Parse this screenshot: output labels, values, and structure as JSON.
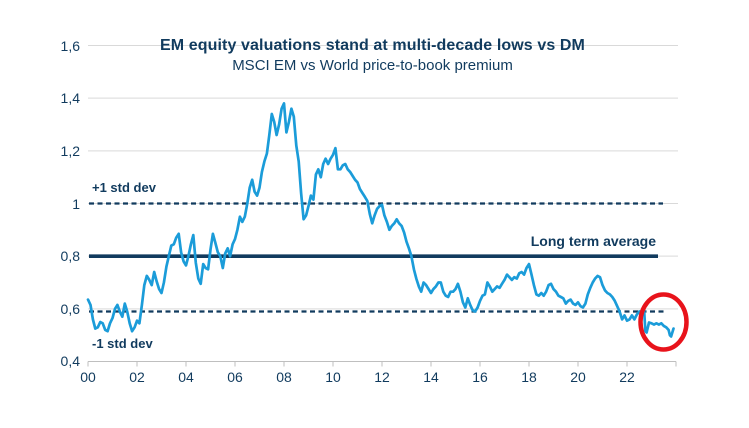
{
  "title": "EM equity valuations stand at multi-decade lows vs DM",
  "subtitle": "MSCI EM vs World price-to-book premium",
  "annotations": {
    "plus_std_label": "+1 std dev",
    "minus_std_label": "-1 std dev",
    "long_term_avg_label": "Long term average"
  },
  "colors": {
    "navy_text": "#113B5E",
    "line_navy": "#113B5E",
    "series_blue": "#1B9CD9",
    "gridline": "#D9D9D9",
    "axis_gray": "#BFBFBF",
    "highlight_red": "#E8131B",
    "background": "#FFFFFF"
  },
  "chart_data": {
    "type": "line",
    "title": "EM equity valuations stand at multi-decade lows vs DM",
    "subtitle": "MSCI EM vs World price-to-book premium",
    "xlabel": "",
    "ylabel": "",
    "ylim": [
      0.4,
      1.6
    ],
    "xlim_years": [
      2000,
      2024
    ],
    "grid": "horizontal",
    "legend": "none",
    "x_tick_labels": [
      "00",
      "02",
      "04",
      "06",
      "08",
      "10",
      "12",
      "14",
      "16",
      "18",
      "20",
      "22"
    ],
    "y_tick_labels": [
      "1,6",
      "1,4",
      "1,2",
      "1",
      "0,8",
      "0,6",
      "0,4"
    ],
    "y_gridlines": [
      1.6,
      1.4,
      1.2,
      1.0,
      0.8,
      0.6
    ],
    "reference_lines": {
      "plus_one_std_dev": 1.0,
      "long_term_average": 0.8,
      "minus_one_std_dev": 0.59
    },
    "highlight": "red circle around the 2022-2023 lows at the end of the series",
    "series": [
      {
        "name": "MSCI EM vs World price-to-book premium",
        "x_unit": "years since 2000 (decimal)",
        "points": [
          [
            0.0,
            0.635
          ],
          [
            0.1,
            0.615
          ],
          [
            0.2,
            0.56
          ],
          [
            0.3,
            0.525
          ],
          [
            0.4,
            0.53
          ],
          [
            0.5,
            0.55
          ],
          [
            0.6,
            0.545
          ],
          [
            0.7,
            0.52
          ],
          [
            0.8,
            0.515
          ],
          [
            0.9,
            0.545
          ],
          [
            1.0,
            0.565
          ],
          [
            1.1,
            0.6
          ],
          [
            1.2,
            0.615
          ],
          [
            1.3,
            0.59
          ],
          [
            1.4,
            0.57
          ],
          [
            1.5,
            0.62
          ],
          [
            1.6,
            0.59
          ],
          [
            1.7,
            0.545
          ],
          [
            1.8,
            0.515
          ],
          [
            1.9,
            0.53
          ],
          [
            2.0,
            0.555
          ],
          [
            2.1,
            0.545
          ],
          [
            2.2,
            0.615
          ],
          [
            2.3,
            0.69
          ],
          [
            2.4,
            0.725
          ],
          [
            2.5,
            0.71
          ],
          [
            2.6,
            0.69
          ],
          [
            2.7,
            0.74
          ],
          [
            2.8,
            0.705
          ],
          [
            2.9,
            0.675
          ],
          [
            3.0,
            0.66
          ],
          [
            3.1,
            0.7
          ],
          [
            3.2,
            0.76
          ],
          [
            3.3,
            0.8
          ],
          [
            3.4,
            0.84
          ],
          [
            3.5,
            0.845
          ],
          [
            3.6,
            0.87
          ],
          [
            3.7,
            0.885
          ],
          [
            3.8,
            0.815
          ],
          [
            3.9,
            0.78
          ],
          [
            4.0,
            0.765
          ],
          [
            4.1,
            0.8
          ],
          [
            4.2,
            0.845
          ],
          [
            4.3,
            0.88
          ],
          [
            4.4,
            0.775
          ],
          [
            4.5,
            0.715
          ],
          [
            4.6,
            0.695
          ],
          [
            4.7,
            0.77
          ],
          [
            4.8,
            0.755
          ],
          [
            4.9,
            0.75
          ],
          [
            5.0,
            0.825
          ],
          [
            5.1,
            0.885
          ],
          [
            5.2,
            0.85
          ],
          [
            5.3,
            0.815
          ],
          [
            5.4,
            0.8
          ],
          [
            5.5,
            0.755
          ],
          [
            5.6,
            0.81
          ],
          [
            5.7,
            0.83
          ],
          [
            5.8,
            0.8
          ],
          [
            5.9,
            0.845
          ],
          [
            6.0,
            0.865
          ],
          [
            6.1,
            0.9
          ],
          [
            6.2,
            0.95
          ],
          [
            6.3,
            0.93
          ],
          [
            6.4,
            0.95
          ],
          [
            6.5,
            1.0
          ],
          [
            6.6,
            1.06
          ],
          [
            6.7,
            1.09
          ],
          [
            6.8,
            1.045
          ],
          [
            6.9,
            1.03
          ],
          [
            7.0,
            1.06
          ],
          [
            7.1,
            1.12
          ],
          [
            7.2,
            1.16
          ],
          [
            7.3,
            1.19
          ],
          [
            7.4,
            1.26
          ],
          [
            7.5,
            1.34
          ],
          [
            7.6,
            1.31
          ],
          [
            7.7,
            1.26
          ],
          [
            7.8,
            1.3
          ],
          [
            7.9,
            1.36
          ],
          [
            8.0,
            1.38
          ],
          [
            8.1,
            1.27
          ],
          [
            8.2,
            1.31
          ],
          [
            8.3,
            1.36
          ],
          [
            8.4,
            1.33
          ],
          [
            8.5,
            1.22
          ],
          [
            8.6,
            1.16
          ],
          [
            8.7,
            1.04
          ],
          [
            8.8,
            0.94
          ],
          [
            8.9,
            0.955
          ],
          [
            9.0,
            0.99
          ],
          [
            9.1,
            1.03
          ],
          [
            9.2,
            1.015
          ],
          [
            9.3,
            1.11
          ],
          [
            9.4,
            1.13
          ],
          [
            9.5,
            1.1
          ],
          [
            9.6,
            1.15
          ],
          [
            9.7,
            1.17
          ],
          [
            9.8,
            1.15
          ],
          [
            9.9,
            1.17
          ],
          [
            10.0,
            1.185
          ],
          [
            10.1,
            1.21
          ],
          [
            10.2,
            1.13
          ],
          [
            10.3,
            1.13
          ],
          [
            10.4,
            1.145
          ],
          [
            10.5,
            1.15
          ],
          [
            10.6,
            1.13
          ],
          [
            10.7,
            1.12
          ],
          [
            10.8,
            1.105
          ],
          [
            10.9,
            1.09
          ],
          [
            11.0,
            1.08
          ],
          [
            11.1,
            1.055
          ],
          [
            11.2,
            1.04
          ],
          [
            11.3,
            1.025
          ],
          [
            11.4,
            1.01
          ],
          [
            11.5,
            0.96
          ],
          [
            11.6,
            0.925
          ],
          [
            11.7,
            0.955
          ],
          [
            11.8,
            0.98
          ],
          [
            11.9,
            0.99
          ],
          [
            12.0,
            0.995
          ],
          [
            12.1,
            0.955
          ],
          [
            12.2,
            0.93
          ],
          [
            12.3,
            0.9
          ],
          [
            12.4,
            0.915
          ],
          [
            12.5,
            0.925
          ],
          [
            12.6,
            0.94
          ],
          [
            12.7,
            0.925
          ],
          [
            12.8,
            0.915
          ],
          [
            12.9,
            0.89
          ],
          [
            13.0,
            0.855
          ],
          [
            13.1,
            0.83
          ],
          [
            13.2,
            0.8
          ],
          [
            13.3,
            0.75
          ],
          [
            13.4,
            0.715
          ],
          [
            13.5,
            0.685
          ],
          [
            13.6,
            0.665
          ],
          [
            13.7,
            0.7
          ],
          [
            13.8,
            0.69
          ],
          [
            13.9,
            0.675
          ],
          [
            14.0,
            0.66
          ],
          [
            14.1,
            0.675
          ],
          [
            14.2,
            0.685
          ],
          [
            14.3,
            0.7
          ],
          [
            14.4,
            0.7
          ],
          [
            14.5,
            0.665
          ],
          [
            14.6,
            0.65
          ],
          [
            14.7,
            0.645
          ],
          [
            14.8,
            0.665
          ],
          [
            14.9,
            0.665
          ],
          [
            15.0,
            0.675
          ],
          [
            15.1,
            0.695
          ],
          [
            15.2,
            0.665
          ],
          [
            15.3,
            0.625
          ],
          [
            15.4,
            0.605
          ],
          [
            15.5,
            0.64
          ],
          [
            15.6,
            0.615
          ],
          [
            15.7,
            0.595
          ],
          [
            15.8,
            0.59
          ],
          [
            15.9,
            0.605
          ],
          [
            16.0,
            0.63
          ],
          [
            16.1,
            0.65
          ],
          [
            16.2,
            0.655
          ],
          [
            16.3,
            0.7
          ],
          [
            16.4,
            0.685
          ],
          [
            16.5,
            0.665
          ],
          [
            16.6,
            0.675
          ],
          [
            16.7,
            0.685
          ],
          [
            16.8,
            0.68
          ],
          [
            16.9,
            0.695
          ],
          [
            17.0,
            0.71
          ],
          [
            17.1,
            0.73
          ],
          [
            17.2,
            0.72
          ],
          [
            17.3,
            0.71
          ],
          [
            17.4,
            0.72
          ],
          [
            17.5,
            0.715
          ],
          [
            17.6,
            0.735
          ],
          [
            17.7,
            0.74
          ],
          [
            17.8,
            0.73
          ],
          [
            17.9,
            0.755
          ],
          [
            18.0,
            0.77
          ],
          [
            18.1,
            0.73
          ],
          [
            18.2,
            0.69
          ],
          [
            18.3,
            0.655
          ],
          [
            18.4,
            0.65
          ],
          [
            18.5,
            0.66
          ],
          [
            18.6,
            0.65
          ],
          [
            18.7,
            0.665
          ],
          [
            18.8,
            0.69
          ],
          [
            18.9,
            0.695
          ],
          [
            19.0,
            0.675
          ],
          [
            19.1,
            0.665
          ],
          [
            19.2,
            0.65
          ],
          [
            19.3,
            0.645
          ],
          [
            19.4,
            0.64
          ],
          [
            19.5,
            0.62
          ],
          [
            19.6,
            0.63
          ],
          [
            19.7,
            0.635
          ],
          [
            19.8,
            0.62
          ],
          [
            19.9,
            0.615
          ],
          [
            20.0,
            0.625
          ],
          [
            20.1,
            0.61
          ],
          [
            20.2,
            0.605
          ],
          [
            20.3,
            0.62
          ],
          [
            20.4,
            0.655
          ],
          [
            20.5,
            0.68
          ],
          [
            20.6,
            0.7
          ],
          [
            20.7,
            0.715
          ],
          [
            20.8,
            0.725
          ],
          [
            20.9,
            0.72
          ],
          [
            21.0,
            0.69
          ],
          [
            21.1,
            0.67
          ],
          [
            21.2,
            0.66
          ],
          [
            21.3,
            0.655
          ],
          [
            21.4,
            0.645
          ],
          [
            21.5,
            0.63
          ],
          [
            21.6,
            0.61
          ],
          [
            21.7,
            0.59
          ],
          [
            21.8,
            0.56
          ],
          [
            21.9,
            0.575
          ],
          [
            22.0,
            0.555
          ],
          [
            22.1,
            0.56
          ],
          [
            22.2,
            0.575
          ],
          [
            22.3,
            0.56
          ],
          [
            22.4,
            0.578
          ],
          [
            22.5,
            0.59
          ],
          [
            22.6,
            0.588
          ],
          [
            22.7,
            0.595
          ],
          [
            22.75,
            0.515
          ],
          [
            22.8,
            0.51
          ],
          [
            22.9,
            0.548
          ],
          [
            23.0,
            0.545
          ],
          [
            23.1,
            0.54
          ],
          [
            23.2,
            0.545
          ],
          [
            23.3,
            0.54
          ],
          [
            23.4,
            0.545
          ],
          [
            23.5,
            0.535
          ],
          [
            23.6,
            0.53
          ],
          [
            23.7,
            0.52
          ],
          [
            23.75,
            0.5
          ],
          [
            23.8,
            0.495
          ],
          [
            23.9,
            0.525
          ]
        ]
      }
    ]
  }
}
